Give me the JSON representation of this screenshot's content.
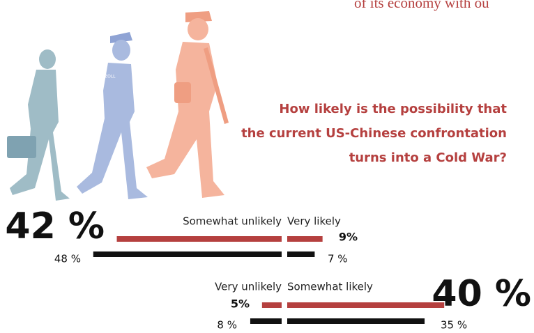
{
  "header_fragment": "of its economy with ou",
  "chart_data": {
    "type": "diverging-bar",
    "title": [
      "How likely is the possibility that",
      "the current US-Chinese confrontation",
      "turns into a Cold War?"
    ],
    "categories": [
      "Somewhat unlikely",
      "Very likely",
      "Very unlikely",
      "Somewhat likely"
    ],
    "series": [
      {
        "color": "#b5403f",
        "values": [
          42,
          9,
          5,
          40
        ],
        "value_labels": [
          "42 %",
          "9%",
          "5%",
          "40 %"
        ]
      },
      {
        "color": "#111111",
        "values": [
          48,
          7,
          8,
          35
        ],
        "value_labels": [
          "48 %",
          "7 %",
          "8 %",
          "35 %"
        ]
      }
    ]
  }
}
